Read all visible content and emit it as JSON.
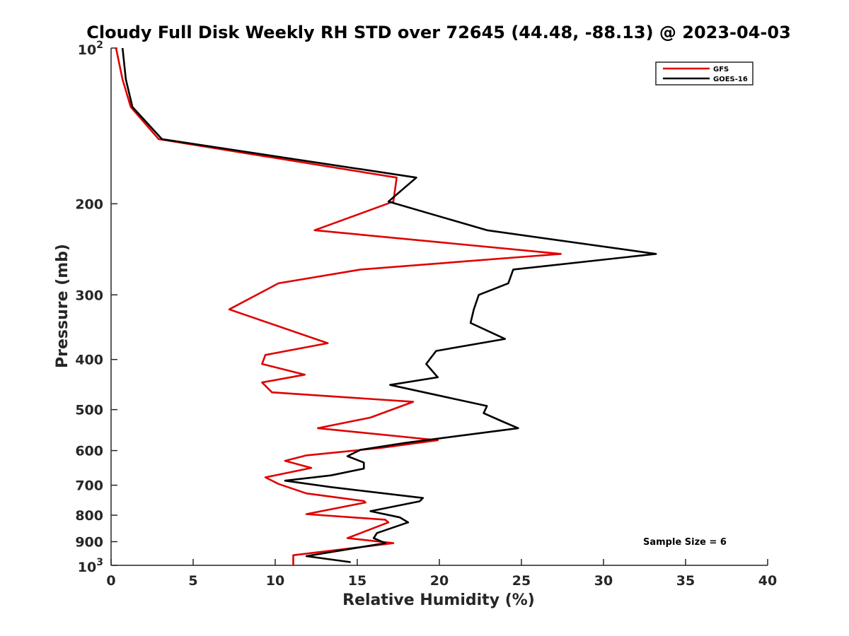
{
  "chart_data": {
    "type": "line",
    "title": "Cloudy Full Disk Weekly RH STD over 72645 (44.48, -88.13) @ 2023-04-03",
    "xlabel": "Relative Humidity (%)",
    "ylabel": "Pressure (mb)",
    "xlim": [
      0,
      40
    ],
    "ylim": [
      100,
      1000
    ],
    "y_scale": "log",
    "y_reversed": true,
    "grid": false,
    "legend_position": "top-right",
    "x_ticks": [
      0,
      5,
      10,
      15,
      20,
      25,
      30,
      35,
      40
    ],
    "x_tick_labels": [
      "0",
      "5",
      "10",
      "15",
      "20",
      "25",
      "30",
      "35",
      "40"
    ],
    "y_ticks": [
      200,
      300,
      400,
      500,
      600,
      700,
      800,
      900
    ],
    "y_tick_labels": [
      "200",
      "300",
      "400",
      "500",
      "600",
      "700",
      "800",
      "900"
    ],
    "y_decade_ticks": [
      100,
      1000
    ],
    "y_decade_base": "10",
    "y_decade_exponents": [
      "2",
      "3"
    ],
    "annotation": "Sample Size = 6",
    "series": [
      {
        "name": "GFS",
        "color": "#e00000",
        "points": [
          [
            0.3,
            100
          ],
          [
            0.7,
            115
          ],
          [
            1.2,
            130
          ],
          [
            2.9,
            150
          ],
          [
            17.4,
            178
          ],
          [
            17.2,
            198
          ],
          [
            12.4,
            225
          ],
          [
            27.4,
            250
          ],
          [
            15.2,
            268
          ],
          [
            10.2,
            285
          ],
          [
            7.2,
            320
          ],
          [
            13.2,
            372
          ],
          [
            9.4,
            392
          ],
          [
            9.2,
            408
          ],
          [
            11.8,
            428
          ],
          [
            9.2,
            443
          ],
          [
            9.8,
            463
          ],
          [
            18.4,
            483
          ],
          [
            15.8,
            518
          ],
          [
            12.6,
            543
          ],
          [
            19.9,
            573
          ],
          [
            16.4,
            593
          ],
          [
            11.9,
            613
          ],
          [
            10.6,
            628
          ],
          [
            12.2,
            648
          ],
          [
            9.4,
            676
          ],
          [
            10.2,
            696
          ],
          [
            11.9,
            726
          ],
          [
            15.4,
            751
          ],
          [
            15.5,
            756
          ],
          [
            11.9,
            796
          ],
          [
            16.7,
            816
          ],
          [
            16.9,
            826
          ],
          [
            14.4,
            886
          ],
          [
            17.2,
            906
          ],
          [
            11.1,
            956
          ],
          [
            11.1,
            1000
          ]
        ]
      },
      {
        "name": "GOES-16",
        "color": "#000000",
        "points": [
          [
            0.7,
            100
          ],
          [
            0.9,
            115
          ],
          [
            1.3,
            130
          ],
          [
            3.1,
            150
          ],
          [
            18.6,
            178
          ],
          [
            16.9,
            198
          ],
          [
            22.9,
            225
          ],
          [
            33.2,
            250
          ],
          [
            24.5,
            268
          ],
          [
            24.2,
            285
          ],
          [
            22.4,
            300
          ],
          [
            22.1,
            320
          ],
          [
            21.9,
            340
          ],
          [
            24.0,
            365
          ],
          [
            19.8,
            385
          ],
          [
            19.2,
            408
          ],
          [
            19.9,
            433
          ],
          [
            17.0,
            448
          ],
          [
            22.9,
            492
          ],
          [
            22.7,
            508
          ],
          [
            23.9,
            528
          ],
          [
            24.8,
            543
          ],
          [
            17.9,
            580
          ],
          [
            15.2,
            598
          ],
          [
            14.4,
            615
          ],
          [
            15.4,
            633
          ],
          [
            15.4,
            650
          ],
          [
            13.4,
            670
          ],
          [
            10.6,
            686
          ],
          [
            13.4,
            706
          ],
          [
            19.0,
            741
          ],
          [
            18.8,
            752
          ],
          [
            15.8,
            786
          ],
          [
            17.6,
            808
          ],
          [
            18.1,
            826
          ],
          [
            16.2,
            866
          ],
          [
            16.0,
            886
          ],
          [
            16.7,
            906
          ],
          [
            11.9,
            960
          ],
          [
            14.6,
            986
          ]
        ]
      }
    ]
  }
}
